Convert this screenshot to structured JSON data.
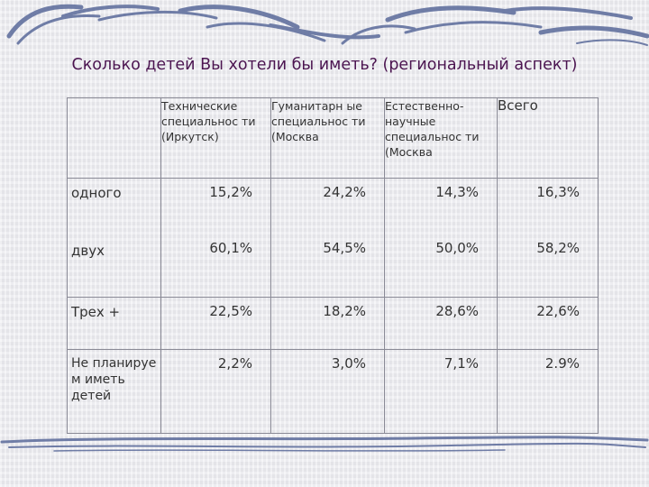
{
  "slide": {
    "title": "Сколько детей Вы хотели бы иметь? (региональный аспект)"
  },
  "table": {
    "headers": [
      "",
      "Технические специальнос ти (Иркутск)",
      "Гуманитарн ые специальнос ти (Москва",
      "Естественно- научные специальнос ти (Москва",
      "Всего"
    ],
    "rows": [
      {
        "label": "одного",
        "values": [
          "15,2%",
          "24,2%",
          "14,3%",
          "16,3%"
        ]
      },
      {
        "label": "двух",
        "values": [
          "60,1%",
          "54,5%",
          "50,0%",
          "58,2%"
        ]
      },
      {
        "label": "Трех +",
        "values": [
          "22,5%",
          "18,2%",
          "28,6%",
          "22,6%"
        ]
      },
      {
        "label": "Не планируе м иметь детей",
        "values": [
          "2,2%",
          "3,0%",
          "7,1%",
          "2.9%"
        ]
      }
    ]
  },
  "colors": {
    "title": "#4b1450",
    "decoration": "#5a6a9a",
    "border": "#8a8a96"
  }
}
